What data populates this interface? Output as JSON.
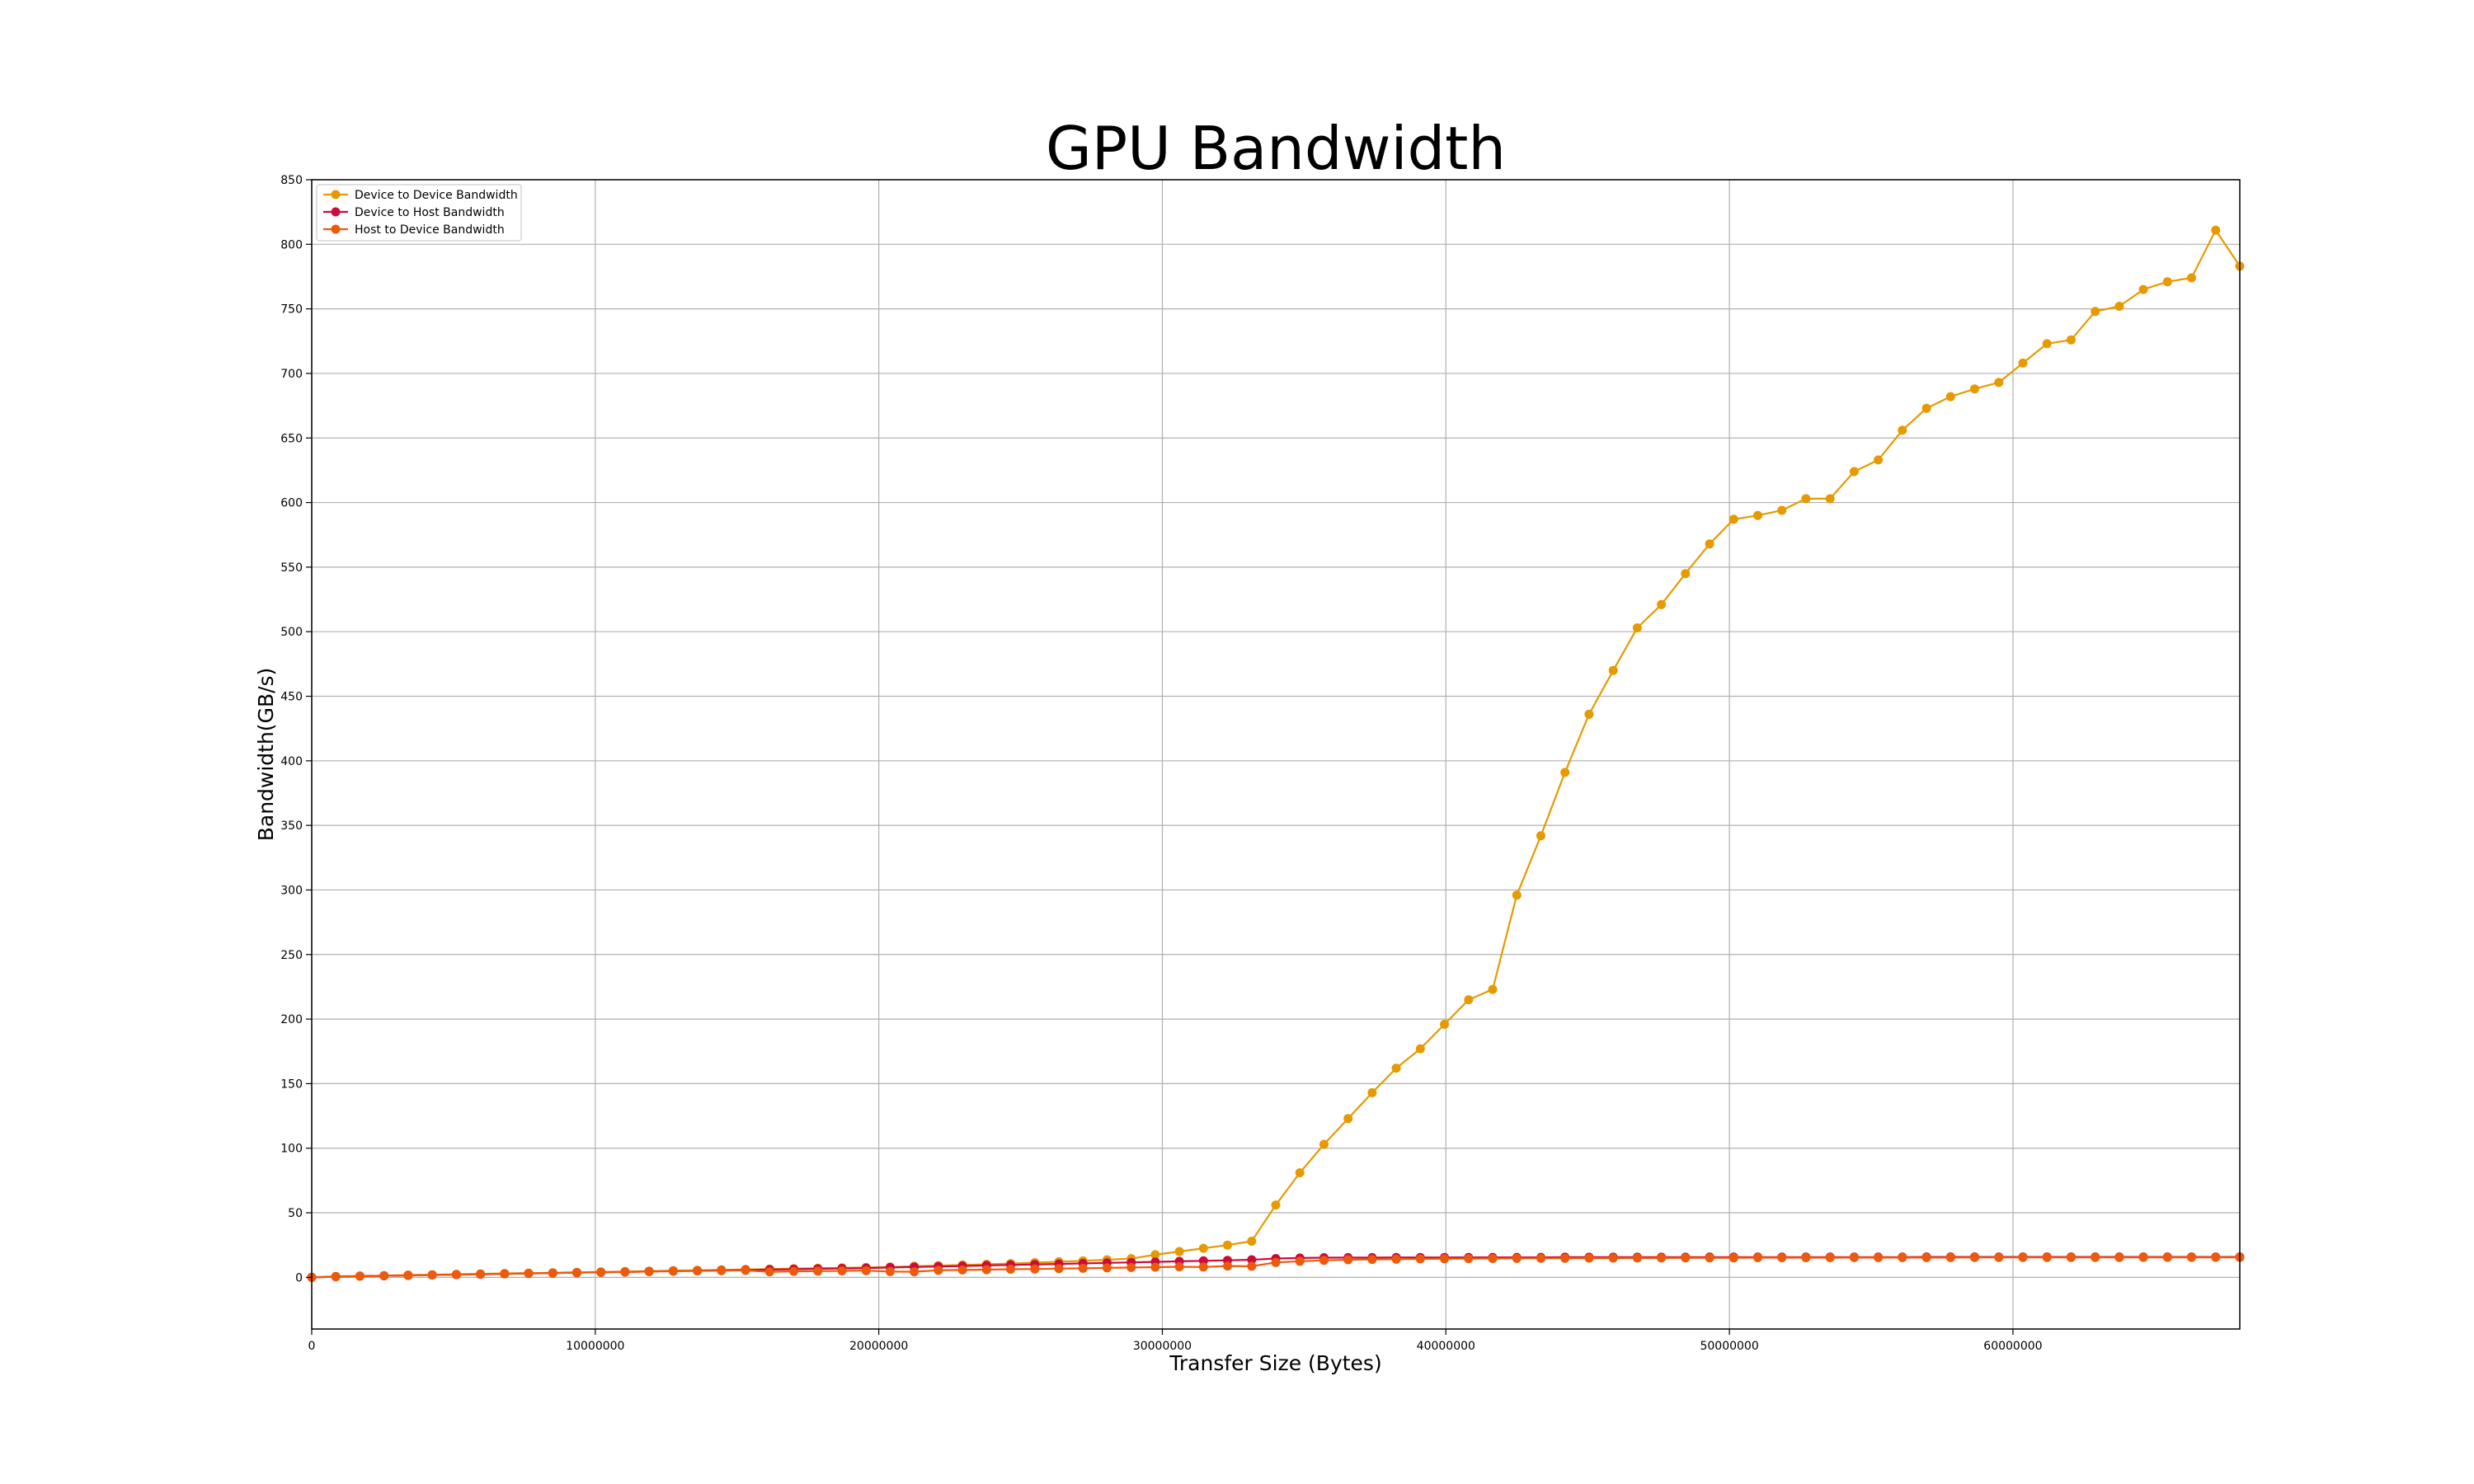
{
  "chart_data": {
    "type": "line",
    "title": "GPU Bandwidth",
    "xlabel": "Transfer Size (Bytes)",
    "ylabel": "Bandwidth(GB/s)",
    "xlim": [
      0,
      68000000
    ],
    "ylim": [
      -40,
      850
    ],
    "x_ticks": [
      0,
      10000000,
      20000000,
      30000000,
      40000000,
      50000000,
      60000000
    ],
    "x_tick_labels": [
      "0",
      "10000000",
      "20000000",
      "30000000",
      "40000000",
      "50000000",
      "60000000"
    ],
    "y_ticks": [
      0,
      50,
      100,
      150,
      200,
      250,
      300,
      350,
      400,
      450,
      500,
      550,
      600,
      650,
      700,
      750,
      800,
      850
    ],
    "y_tick_labels": [
      "0",
      "50",
      "100",
      "150",
      "200",
      "250",
      "300",
      "350",
      "400",
      "450",
      "500",
      "550",
      "600",
      "650",
      "700",
      "750",
      "800",
      "850"
    ],
    "grid": true,
    "legend_position": "top-left",
    "x": [
      0,
      850000,
      1700000,
      2550000,
      3400000,
      4250000,
      5100000,
      5950000,
      6800000,
      7650000,
      8500000,
      9350000,
      10200000,
      11050000,
      11900000,
      12750000,
      13600000,
      14450000,
      15300000,
      16150000,
      17000000,
      17850000,
      18700000,
      19550000,
      20400000,
      21250000,
      22100000,
      22950000,
      23800000,
      24650000,
      25500000,
      26350000,
      27200000,
      28050000,
      28900000,
      29750000,
      30600000,
      31450000,
      32300000,
      33150000,
      34000000,
      34850000,
      35700000,
      36550000,
      37400000,
      38250000,
      39100000,
      39950000,
      40800000,
      41650000,
      42500000,
      43350000,
      44200000,
      45050000,
      45900000,
      46750000,
      47600000,
      48450000,
      49300000,
      50150000,
      51000000,
      51850000,
      52700000,
      53550000,
      54400000,
      55250000,
      56100000,
      56950000,
      57800000,
      58650000,
      59500000,
      60350000,
      61200000,
      62050000,
      62900000,
      63750000,
      64600000,
      65450000,
      66300000,
      67150000,
      68000000
    ],
    "series": [
      {
        "name": "Device to Device Bandwidth",
        "color": "#e69a00",
        "values": [
          0,
          0.8,
          1.1,
          1.4,
          1.8,
          2.1,
          2.4,
          2.7,
          3.0,
          3.3,
          3.6,
          3.9,
          4.2,
          4.5,
          4.9,
          5.2,
          5.5,
          5.8,
          6.1,
          6.4,
          6.8,
          7.1,
          7.4,
          7.7,
          8.1,
          8.6,
          9.1,
          9.6,
          10.1,
          10.7,
          11.4,
          12.1,
          12.8,
          13.6,
          14.5,
          17.5,
          20,
          22.5,
          25,
          28,
          56,
          81,
          103,
          123,
          143,
          162,
          177,
          196,
          215,
          223,
          296,
          342,
          391,
          436,
          470,
          503,
          521,
          545,
          568,
          587,
          590,
          594,
          603,
          603,
          624,
          633,
          656,
          673,
          682,
          688,
          693,
          708,
          723,
          726,
          748,
          752,
          765,
          771,
          774,
          811,
          783
        ]
      },
      {
        "name": "Device to Host Bandwidth",
        "color": "#cc0a3c",
        "values": [
          0,
          0.5,
          0.9,
          1.2,
          1.5,
          1.8,
          2.1,
          2.4,
          2.7,
          3.0,
          3.3,
          3.6,
          3.9,
          4.2,
          4.5,
          4.8,
          5.1,
          5.4,
          5.7,
          6.0,
          6.3,
          6.6,
          6.9,
          7.2,
          7.6,
          8.0,
          8.4,
          8.8,
          9.2,
          9.6,
          10.0,
          10.4,
          10.8,
          11.2,
          11.6,
          12.0,
          12.4,
          12.8,
          13.2,
          13.6,
          14.6,
          15.0,
          15.2,
          15.3,
          15.3,
          15.4,
          15.4,
          15.4,
          15.5,
          15.5,
          15.5,
          15.5,
          15.6,
          15.6,
          15.6,
          15.6,
          15.6,
          15.6,
          15.7,
          15.7,
          15.7,
          15.7,
          15.7,
          15.7,
          15.7,
          15.7,
          15.7,
          15.8,
          15.8,
          15.8,
          15.8,
          15.8,
          15.8,
          15.8,
          15.8,
          15.8,
          15.8,
          15.8,
          15.8,
          15.8,
          15.8
        ]
      },
      {
        "name": "Host to Device Bandwidth",
        "color": "#ec5a0c",
        "values": [
          0,
          0.5,
          0.9,
          1.2,
          1.5,
          1.8,
          2.1,
          2.4,
          2.7,
          3.0,
          3.3,
          3.6,
          3.9,
          4.2,
          4.5,
          4.8,
          5.0,
          5.2,
          5.4,
          4.3,
          4.6,
          4.8,
          5.0,
          5.2,
          4.5,
          4.3,
          5.5,
          5.7,
          6.0,
          6.3,
          6.5,
          6.8,
          7.0,
          7.3,
          7.6,
          7.9,
          8.2,
          8.0,
          8.8,
          8.6,
          11.5,
          12.5,
          13.2,
          13.6,
          13.9,
          14.1,
          14.3,
          14.4,
          14.5,
          14.6,
          14.7,
          14.8,
          14.8,
          14.9,
          14.9,
          15.0,
          15.0,
          15.1,
          15.1,
          15.1,
          15.2,
          15.2,
          15.2,
          15.2,
          15.3,
          15.3,
          15.3,
          15.3,
          15.3,
          15.4,
          15.4,
          15.4,
          15.4,
          15.4,
          15.4,
          15.4,
          15.5,
          15.5,
          15.5,
          15.5,
          15.5
        ]
      }
    ]
  }
}
